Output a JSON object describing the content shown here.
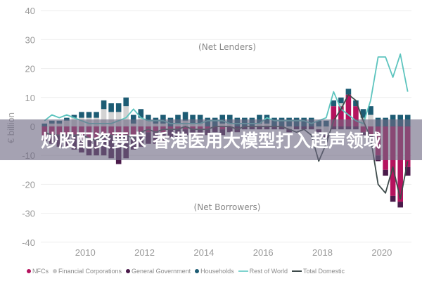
{
  "chart_data": {
    "type": "bar",
    "subtype": "stacked bar with lines",
    "title": "",
    "xlabel": "",
    "ylabel": "€ billion",
    "ylim": [
      -40,
      40
    ],
    "yticks": [
      40,
      30,
      20,
      10,
      0,
      -10,
      -20,
      -30,
      -40
    ],
    "xticks": [
      "2010",
      "2012",
      "2014",
      "2016",
      "2018",
      "2020"
    ],
    "grid": true,
    "legend_position": "bottom",
    "annotations": [
      "(Net Lenders)",
      "(Net Borrowers)"
    ],
    "x_start": "2008Q3",
    "categories": [
      "2008Q3",
      "2008Q4",
      "2009Q1",
      "2009Q2",
      "2009Q3",
      "2009Q4",
      "2010Q1",
      "2010Q2",
      "2010Q3",
      "2010Q4",
      "2011Q1",
      "2011Q2",
      "2011Q3",
      "2011Q4",
      "2012Q1",
      "2012Q2",
      "2012Q3",
      "2012Q4",
      "2013Q1",
      "2013Q2",
      "2013Q3",
      "2013Q4",
      "2014Q1",
      "2014Q2",
      "2014Q3",
      "2014Q4",
      "2015Q1",
      "2015Q2",
      "2015Q3",
      "2015Q4",
      "2016Q1",
      "2016Q2",
      "2016Q3",
      "2016Q4",
      "2017Q1",
      "2017Q2",
      "2017Q3",
      "2017Q4",
      "2018Q1",
      "2018Q2",
      "2018Q3",
      "2018Q4",
      "2019Q1",
      "2019Q2",
      "2019Q3",
      "2019Q4",
      "2020Q1",
      "2020Q2",
      "2020Q3",
      "2020Q4"
    ],
    "series": [
      {
        "name": "NFCs",
        "color": "#b5135e",
        "values": [
          -3,
          -3,
          -3,
          -3,
          -3,
          -4,
          -4,
          -4,
          -3,
          -3,
          -4,
          -3,
          -3,
          -2,
          -2,
          -2,
          -2,
          -1,
          -1,
          -1,
          -1,
          -1,
          -1,
          0,
          -1,
          0,
          0,
          0,
          0,
          0,
          0,
          0,
          0,
          0,
          0,
          0,
          0,
          0,
          0,
          7,
          7,
          11,
          7,
          -2,
          -3,
          -10,
          -15,
          -24,
          -26,
          -14
        ]
      },
      {
        "name": "Financial Corporations",
        "color": "#d3d3d3",
        "values": [
          0,
          1,
          1,
          2,
          3,
          3,
          3,
          3,
          6,
          5,
          5,
          7,
          1,
          3,
          2,
          1,
          1,
          0,
          1,
          2,
          1,
          1,
          0,
          0,
          1,
          1,
          0,
          0,
          0,
          1,
          1,
          0,
          0,
          -1,
          0,
          0,
          0,
          -1,
          -3,
          0,
          1,
          0,
          0,
          3,
          4,
          0,
          0,
          0,
          0,
          0
        ]
      },
      {
        "name": "General Government",
        "color": "#4a1a4a",
        "values": [
          -2,
          -3,
          -4,
          -4,
          -5,
          -5,
          -6,
          -6,
          -7,
          -8,
          -9,
          -8,
          -5,
          -5,
          -4,
          -4,
          -3,
          -3,
          -3,
          -2,
          -2,
          -2,
          -2,
          -2,
          -2,
          -2,
          -2,
          -1,
          -1,
          -1,
          -1,
          -1,
          -1,
          -1,
          -1,
          -1,
          -1,
          -1,
          -1,
          -1,
          -1,
          -1,
          -1,
          -1,
          -1,
          -2,
          -2,
          -2,
          -2,
          -3
        ]
      },
      {
        "name": "Households",
        "color": "#1d5c74",
        "values": [
          1,
          1,
          1,
          1,
          1,
          2,
          2,
          2,
          3,
          3,
          3,
          3,
          3,
          3,
          2,
          2,
          3,
          3,
          3,
          3,
          3,
          3,
          3,
          3,
          3,
          3,
          3,
          3,
          3,
          3,
          3,
          3,
          3,
          3,
          3,
          3,
          3,
          2,
          2,
          2,
          2,
          2,
          2,
          3,
          3,
          3,
          3,
          4,
          4,
          4
        ]
      },
      {
        "name": "Rest of World",
        "type": "line",
        "color": "#5cc4be",
        "values": [
          2,
          4,
          3,
          4,
          3,
          2,
          1,
          1,
          1,
          1,
          2,
          3,
          6,
          3,
          2,
          2,
          2,
          1,
          1,
          1,
          1,
          1,
          2,
          2,
          2,
          1,
          1,
          1,
          1,
          1,
          3,
          2,
          2,
          2,
          2,
          2,
          1,
          2,
          3,
          12,
          6,
          4,
          2,
          1,
          9,
          24,
          24,
          17,
          25,
          12
        ]
      },
      {
        "name": "Total Domestic",
        "type": "line",
        "color": "#3d4a4a",
        "values": [
          -2,
          -3,
          -3,
          -3,
          -3,
          -3,
          -4,
          -5,
          -3,
          -3,
          -4,
          -3,
          -4,
          -2,
          -1,
          -2,
          -1,
          -1,
          -1,
          0,
          -1,
          -1,
          -1,
          0,
          0,
          0,
          -1,
          0,
          0,
          0,
          0,
          0,
          0,
          -1,
          -2,
          -1,
          -3,
          -12,
          -6,
          2,
          6,
          11,
          9,
          2,
          -4,
          -20,
          -23,
          -14,
          -25,
          -12
        ]
      }
    ]
  },
  "axes": {
    "y_label": "€ billion",
    "y_ticks": [
      "40",
      "30",
      "20",
      "10",
      "0",
      "-10",
      "-20",
      "-30",
      "-40"
    ],
    "x_ticks": [
      "2010",
      "2012",
      "2014",
      "2016",
      "2018",
      "2020"
    ]
  },
  "annotations": {
    "top": "(Net Lenders)",
    "bottom": "(Net Borrowers)"
  },
  "legend": [
    {
      "label": "NFCs",
      "marker": "dot",
      "color": "#b5135e"
    },
    {
      "label": "Financial Corporations",
      "marker": "dot",
      "color": "#c8c8c8"
    },
    {
      "label": "General Government",
      "marker": "dot",
      "color": "#4a1a4a"
    },
    {
      "label": "Households",
      "marker": "dot",
      "color": "#1d5c74"
    },
    {
      "label": "Rest of World",
      "marker": "line",
      "color": "#7fd3cf"
    },
    {
      "label": "Total Domestic",
      "marker": "line",
      "color": "#3d4a4a"
    }
  ],
  "banner": {
    "text": "炒股配资要求 香港医用大模型打入超声领域"
  }
}
